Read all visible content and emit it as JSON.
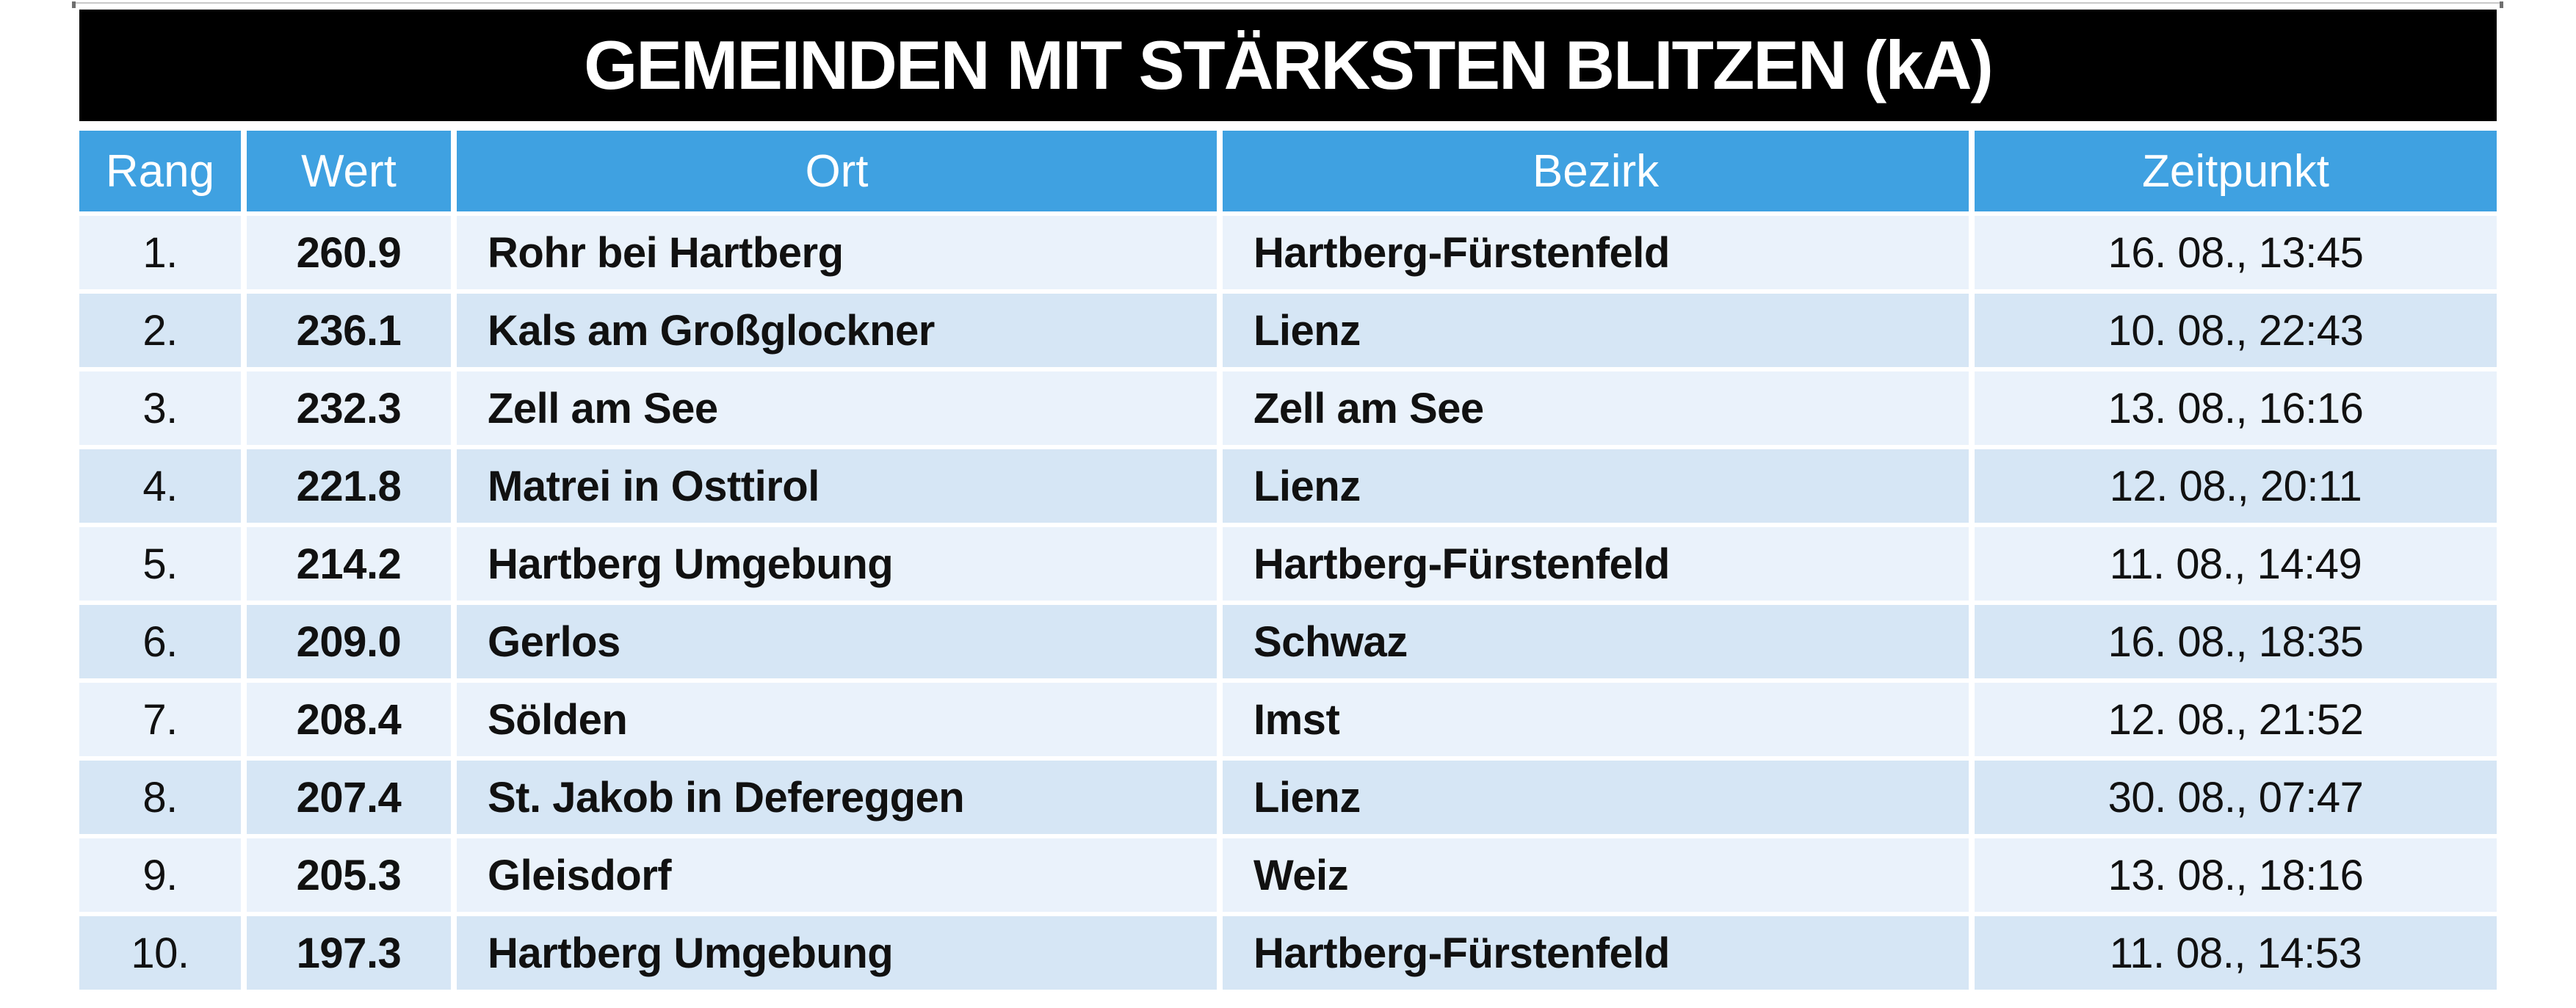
{
  "title": "GEMEINDEN MIT STÄRKSTEN BLITZEN (kA)",
  "colors": {
    "title_bg": "#000000",
    "title_text": "#ffffff",
    "header_blue": "#3fa1e1",
    "row_light": "#eaf2fb",
    "row_dark": "#d6e6f5"
  },
  "chart_data": {
    "type": "table",
    "title": "GEMEINDEN MIT STÄRKSTEN BLITZEN (kA)",
    "columns": [
      "Rang",
      "Wert",
      "Ort",
      "Bezirk",
      "Zeitpunkt"
    ],
    "rows": [
      [
        "1.",
        "260.9",
        "Rohr bei Hartberg",
        "Hartberg-Fürstenfeld",
        "16. 08., 13:45"
      ],
      [
        "2.",
        "236.1",
        "Kals am Großglockner",
        "Lienz",
        "10. 08., 22:43"
      ],
      [
        "3.",
        "232.3",
        "Zell am See",
        "Zell am See",
        "13. 08., 16:16"
      ],
      [
        "4.",
        "221.8",
        "Matrei in Osttirol",
        "Lienz",
        "12. 08., 20:11"
      ],
      [
        "5.",
        "214.2",
        "Hartberg Umgebung",
        "Hartberg-Fürstenfeld",
        "11. 08., 14:49"
      ],
      [
        "6.",
        "209.0",
        "Gerlos",
        "Schwaz",
        "16. 08., 18:35"
      ],
      [
        "7.",
        "208.4",
        "Sölden",
        "Imst",
        "12. 08., 21:52"
      ],
      [
        "8.",
        "207.4",
        "St. Jakob in Defereggen",
        "Lienz",
        "30. 08., 07:47"
      ],
      [
        "9.",
        "205.3",
        "Gleisdorf",
        "Weiz",
        "13. 08., 18:16"
      ],
      [
        "10.",
        "197.3",
        "Hartberg Umgebung",
        "Hartberg-Fürstenfeld",
        "11. 08., 14:53"
      ]
    ]
  }
}
